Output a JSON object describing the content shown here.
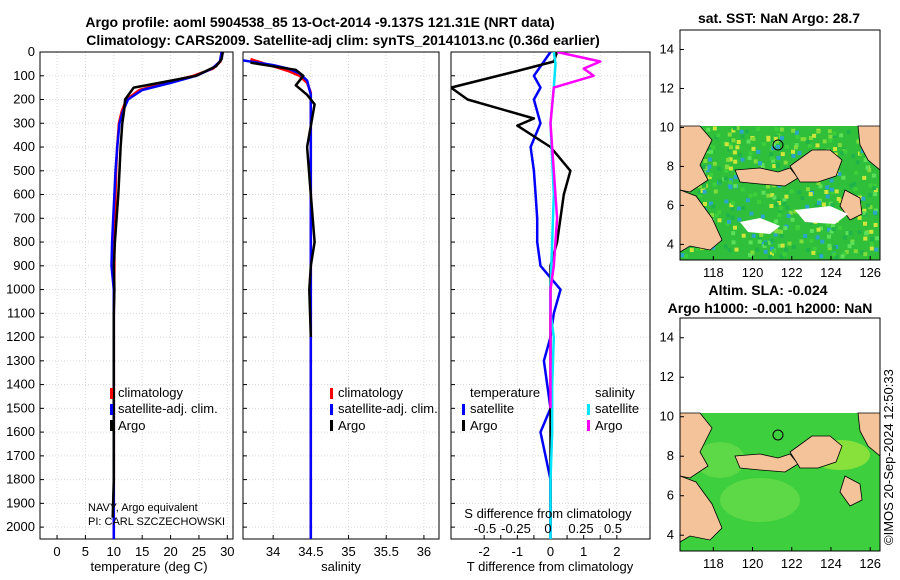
{
  "header": {
    "title_line1": "Argo profile: aoml 5904538_85 13-Oct-2014 -9.137S 121.31E (NRT data)",
    "title_line2": "Climatology: CARS2009. Satellite-adj clim: synTS_20141013.nc (0.36d earlier)"
  },
  "colors": {
    "climatology": "#ff0000",
    "satellite_adj": "#0000ff",
    "argo": "#000000",
    "temp_sat": "#00e5ff",
    "sal_sat": "#00e5ff",
    "sal_argo": "#ff00ff",
    "land": "#f4c39a",
    "sea_green": "#33cc33"
  },
  "chart_data": [
    {
      "id": "temperature",
      "type": "line",
      "xlabel": "temperature (deg C)",
      "ylabel": "pressure (dbar)",
      "xlim": [
        -3,
        31
      ],
      "xticks": [
        0,
        5,
        10,
        15,
        20,
        25,
        30
      ],
      "ylim": [
        2050,
        0
      ],
      "yticks": [
        0,
        100,
        200,
        300,
        400,
        500,
        600,
        700,
        800,
        900,
        1000,
        1100,
        1200,
        1300,
        1400,
        1500,
        1600,
        1700,
        1800,
        1900,
        2000
      ],
      "series": [
        {
          "name": "climatology",
          "color": "#ff0000",
          "x": [
            29.0,
            28.8,
            27.5,
            24.0,
            19.0,
            14.5,
            12.2,
            11.4,
            10.9,
            10.6,
            10.4,
            10.3,
            10.2,
            10.1,
            10.1,
            10.05,
            10.0,
            10.0,
            10.0,
            10.0,
            10.0,
            10.0,
            10.0,
            10.0,
            10.0,
            10.0
          ],
          "y": [
            0,
            40,
            70,
            100,
            130,
            160,
            200,
            250,
            300,
            400,
            500,
            600,
            700,
            800,
            900,
            1000,
            1100,
            1200,
            1300,
            1400,
            1500,
            1600,
            1700,
            1800,
            1900,
            2050
          ]
        },
        {
          "name": "satellite-adj. clim.",
          "color": "#0000ff",
          "x": [
            29.0,
            28.7,
            27.3,
            24.5,
            20.0,
            15.0,
            12.5,
            11.6,
            11.0,
            10.6,
            10.3,
            10.1,
            9.9,
            9.7,
            9.6,
            10.0,
            10.0,
            10.0,
            10.0,
            10.0,
            10.0,
            10.0,
            10.0,
            10.0,
            10.0,
            10.0
          ],
          "y": [
            0,
            40,
            70,
            100,
            130,
            160,
            200,
            250,
            300,
            400,
            500,
            600,
            700,
            800,
            900,
            1000,
            1100,
            1200,
            1300,
            1400,
            1500,
            1600,
            1700,
            1800,
            1900,
            2050
          ]
        },
        {
          "name": "Argo",
          "color": "#000000",
          "x": [
            29.2,
            29.0,
            28.0,
            24.5,
            18.0,
            13.5,
            12.0,
            11.8,
            11.5,
            11.2,
            11.0,
            10.8,
            10.5,
            10.2,
            10.0,
            10.1,
            10.0,
            10.0,
            10.0,
            10.0,
            10.0,
            10.0,
            10.0,
            10.0,
            9.8
          ],
          "y": [
            0,
            30,
            60,
            100,
            130,
            150,
            200,
            250,
            300,
            400,
            500,
            600,
            700,
            800,
            900,
            1000,
            1100,
            1200,
            1300,
            1400,
            1500,
            1600,
            1700,
            1800,
            1960
          ]
        }
      ],
      "legend": [
        "climatology",
        "satellite-adj. clim.",
        "Argo"
      ],
      "annotations": [
        "NAVY, Argo equivalent",
        "PI: CARL SZCZECHOWSKI"
      ]
    },
    {
      "id": "salinity",
      "type": "line",
      "xlabel": "salinity",
      "xlim": [
        33.6,
        36.2
      ],
      "xticks": [
        34,
        34.5,
        35,
        35.5,
        36
      ],
      "ylim": [
        2050,
        0
      ],
      "series": [
        {
          "name": "climatology",
          "color": "#ff0000",
          "x": [
            33.7,
            33.85,
            34.0,
            34.2,
            34.35,
            34.45,
            34.5,
            34.5,
            34.5,
            34.5,
            34.5,
            34.5
          ],
          "y": [
            30,
            45,
            60,
            80,
            100,
            130,
            170,
            300,
            600,
            1200,
            1800,
            2050
          ]
        },
        {
          "name": "satellite-adj. clim.",
          "color": "#0000ff",
          "x": [
            33.6,
            33.8,
            34.0,
            34.2,
            34.35,
            34.45,
            34.5,
            34.5,
            34.5,
            34.5,
            34.5,
            34.5
          ],
          "y": [
            35,
            45,
            55,
            70,
            90,
            120,
            180,
            300,
            600,
            1200,
            1800,
            2050
          ]
        },
        {
          "name": "Argo",
          "color": "#000000",
          "x": [
            33.7,
            34.0,
            34.3,
            34.4,
            34.3,
            34.45,
            34.55,
            34.45,
            34.5,
            34.55,
            34.5,
            34.48,
            34.5
          ],
          "y": [
            45,
            60,
            75,
            100,
            140,
            180,
            220,
            400,
            600,
            800,
            900,
            1000,
            1200
          ]
        }
      ],
      "legend": [
        "climatology",
        "satellite-adj. clim.",
        "Argo"
      ]
    },
    {
      "id": "differences",
      "type": "line",
      "xlabel": "T difference from climatology",
      "xlim": [
        -3,
        3
      ],
      "xticks": [
        -2,
        -1.5,
        -1,
        -0.5,
        0,
        0.5,
        1,
        1.5,
        2
      ],
      "xticklabels": [
        "-2",
        "",
        "-1",
        "",
        "0",
        "",
        "1",
        "",
        "2"
      ],
      "secondary_label": "S difference from climatology",
      "secondary_xticks": [
        "-0.5",
        "-0.25",
        "0",
        "0.25",
        "0.5"
      ],
      "ylim": [
        2050,
        0
      ],
      "series": [
        {
          "name": "temperature satellite",
          "color": "#0000ff",
          "x": [
            0,
            -0.2,
            -0.5,
            -0.3,
            -0.5,
            -0.3,
            -0.6,
            -0.5,
            -0.45,
            -0.4,
            -0.4,
            -0.3,
            0.3,
            0.1,
            0.0,
            -0.2,
            0.0,
            -0.3,
            0.0,
            0.0,
            0.0
          ],
          "y": [
            0,
            40,
            100,
            150,
            200,
            300,
            400,
            500,
            600,
            700,
            800,
            900,
            1000,
            1100,
            1200,
            1300,
            1500,
            1600,
            1800,
            1900,
            2050
          ]
        },
        {
          "name": "temperature Argo",
          "color": "#000000",
          "x": [
            0.2,
            0.1,
            -1.0,
            -3.0,
            -2.5,
            -0.5,
            -1.0,
            0.0,
            0.3,
            0.6,
            0.4,
            0.2,
            0.0,
            0.0,
            0.0,
            0.0,
            0.0,
            0.0,
            0.0,
            0.0,
            0.0
          ],
          "y": [
            0,
            40,
            80,
            150,
            200,
            280,
            310,
            400,
            450,
            500,
            600,
            800,
            900,
            1000,
            1100,
            1300,
            1500,
            1600,
            1800,
            1900,
            2000
          ]
        },
        {
          "name": "salinity satellite",
          "color": "#00e5ff",
          "x": [
            0.1,
            0.15,
            0.1,
            0.0,
            0.1,
            0.05,
            0.0,
            0.0,
            0.1,
            0.05,
            0.05,
            0.0,
            0.0
          ],
          "y": [
            0,
            50,
            150,
            300,
            600,
            800,
            1000,
            1100,
            1200,
            1400,
            1600,
            1800,
            2050
          ]
        },
        {
          "name": "salinity Argo",
          "color": "#ff00ff",
          "x": [
            0.2,
            1.5,
            1.0,
            1.3,
            0.1,
            0.0,
            0.1,
            0.2,
            0.1,
            0.0,
            0.0,
            0.0,
            0.0
          ],
          "y": [
            0,
            40,
            70,
            100,
            150,
            300,
            500,
            700,
            900,
            1000,
            1100,
            1300,
            1500
          ]
        }
      ],
      "legend_headers": [
        "temperature",
        "salinity"
      ],
      "legend": [
        "satellite",
        "Argo",
        "satellite",
        "Argo"
      ]
    }
  ],
  "maps": {
    "top": {
      "title": "sat. SST: NaN Argo: 28.7",
      "xticks": [
        "118",
        "120",
        "122",
        "124",
        "126"
      ],
      "yticks": [
        "4",
        "6",
        "8",
        "10",
        "12",
        "14"
      ]
    },
    "bottom": {
      "title_line1": "Altim. SLA: -0.024",
      "title_line2": "Argo h1000: -0.001 h2000: NaN",
      "xticks": [
        "118",
        "120",
        "122",
        "124",
        "126"
      ],
      "yticks": [
        "4",
        "6",
        "8",
        "10",
        "12",
        "14"
      ]
    }
  },
  "footer": {
    "timestamp": "©IMOS 20-Sep-2024 12:50:33"
  }
}
